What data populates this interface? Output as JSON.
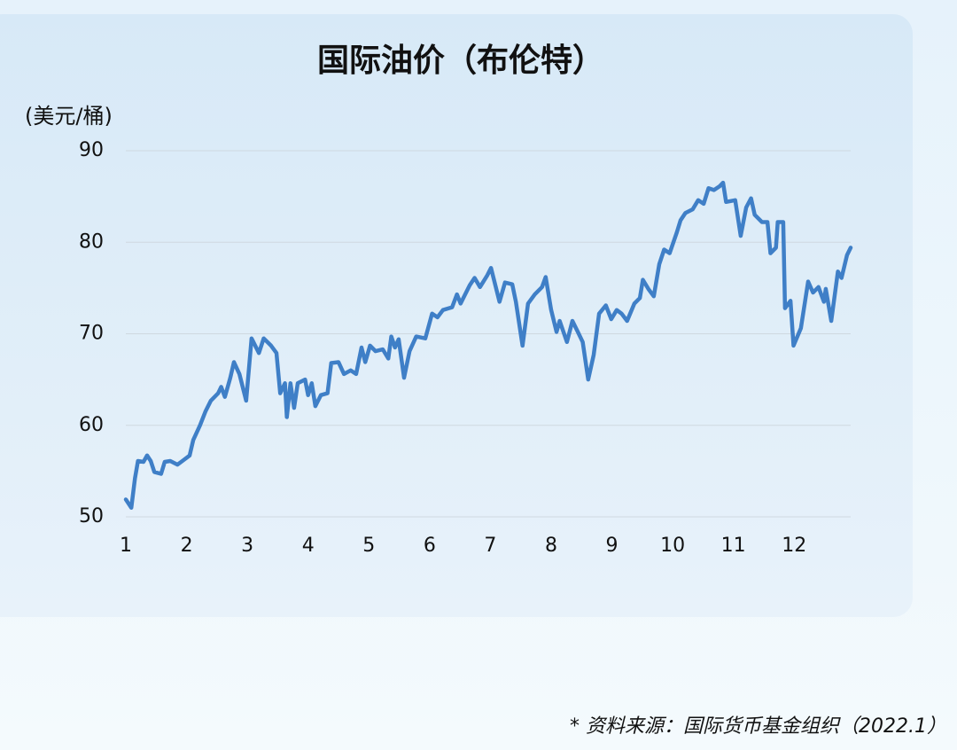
{
  "chart_data": {
    "type": "line",
    "title": "国际油价（布伦特）",
    "y_label": "(美元/桶)",
    "source": "* 资料来源：国际货币基金组织（2022.1）",
    "color": "#3f7fc7",
    "x": [
      1.0,
      1.09,
      1.15,
      1.2,
      1.29,
      1.35,
      1.41,
      1.47,
      1.58,
      1.64,
      1.73,
      1.85,
      1.93,
      2.05,
      2.11,
      2.22,
      2.31,
      2.4,
      2.52,
      2.57,
      2.63,
      2.72,
      2.78,
      2.87,
      2.98,
      3.07,
      3.19,
      3.27,
      3.39,
      3.48,
      3.54,
      3.62,
      3.65,
      3.71,
      3.77,
      3.83,
      3.95,
      4.0,
      4.06,
      4.12,
      4.21,
      4.32,
      4.38,
      4.5,
      4.59,
      4.7,
      4.79,
      4.88,
      4.94,
      5.02,
      5.11,
      5.23,
      5.32,
      5.37,
      5.43,
      5.49,
      5.58,
      5.67,
      5.78,
      5.93,
      6.04,
      6.13,
      6.22,
      6.37,
      6.45,
      6.51,
      6.66,
      6.74,
      6.83,
      6.95,
      7.01,
      7.15,
      7.24,
      7.36,
      7.42,
      7.53,
      7.62,
      7.73,
      7.85,
      7.91,
      8.0,
      8.09,
      8.14,
      8.26,
      8.35,
      8.44,
      8.52,
      8.61,
      8.7,
      8.79,
      8.9,
      8.99,
      9.08,
      9.16,
      9.25,
      9.37,
      9.46,
      9.51,
      9.6,
      9.69,
      9.78,
      9.86,
      9.95,
      10.07,
      10.13,
      10.21,
      10.33,
      10.42,
      10.51,
      10.59,
      10.68,
      10.77,
      10.83,
      10.88,
      11.03,
      11.12,
      11.21,
      11.29,
      11.35,
      11.47,
      11.56,
      11.61,
      11.7,
      11.73,
      11.82,
      11.85,
      11.94,
      11.99,
      12.11,
      12.23,
      12.31,
      12.4,
      12.49,
      12.52,
      12.61,
      12.72,
      12.78,
      12.87,
      12.93
    ],
    "values": [
      51.9,
      51.0,
      54.2,
      56.1,
      56.0,
      56.7,
      56.1,
      54.9,
      54.7,
      56.0,
      56.1,
      55.7,
      56.1,
      56.7,
      58.4,
      60.0,
      61.5,
      62.7,
      63.5,
      64.2,
      63.1,
      65.2,
      66.9,
      65.6,
      62.7,
      69.5,
      67.9,
      69.5,
      68.7,
      67.9,
      63.5,
      64.6,
      60.9,
      64.6,
      61.9,
      64.6,
      65.0,
      63.3,
      64.6,
      62.1,
      63.3,
      63.5,
      66.8,
      66.9,
      65.6,
      66.0,
      65.6,
      68.5,
      66.9,
      68.7,
      68.1,
      68.3,
      67.3,
      69.7,
      68.5,
      69.4,
      65.2,
      68.1,
      69.7,
      69.5,
      72.2,
      71.8,
      72.6,
      72.9,
      74.3,
      73.3,
      75.3,
      76.1,
      75.1,
      76.4,
      77.2,
      73.5,
      75.6,
      75.4,
      73.5,
      68.7,
      73.3,
      74.3,
      75.1,
      76.2,
      72.6,
      70.2,
      71.4,
      69.1,
      71.4,
      70.2,
      69.1,
      65.0,
      67.7,
      72.2,
      73.1,
      71.6,
      72.6,
      72.2,
      71.4,
      73.3,
      73.9,
      75.9,
      74.9,
      74.1,
      77.6,
      79.2,
      78.8,
      81.1,
      82.4,
      83.2,
      83.6,
      84.6,
      84.2,
      85.9,
      85.7,
      86.1,
      86.5,
      84.4,
      84.6,
      80.7,
      83.8,
      84.8,
      83.0,
      82.2,
      82.2,
      78.8,
      79.4,
      82.2,
      82.2,
      72.8,
      73.6,
      68.7,
      70.6,
      75.7,
      74.5,
      75.1,
      73.5,
      74.9,
      71.4,
      76.8,
      76.1,
      78.6,
      79.4
    ],
    "xlim": [
      1,
      12.93
    ],
    "xticks": [
      1,
      2,
      3,
      4,
      5,
      6,
      7,
      8,
      9,
      10,
      11,
      12
    ],
    "ylim": [
      50,
      90
    ],
    "yticks": [
      50,
      60,
      70,
      80,
      90
    ],
    "grid": true
  }
}
